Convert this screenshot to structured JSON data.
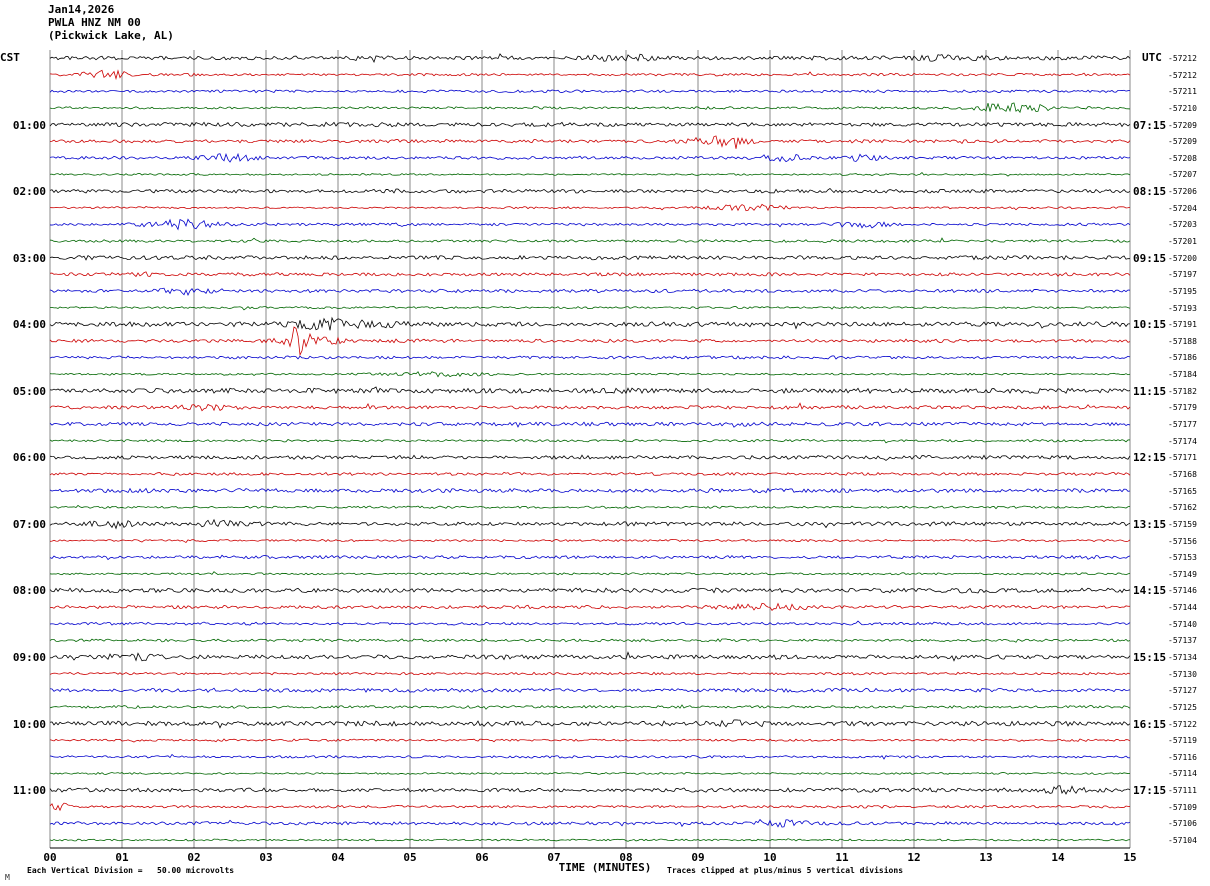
{
  "header": {
    "date": "Jan14,2026",
    "station": "PWLA HNZ NM 00",
    "location": "(Pickwick Lake, AL)"
  },
  "axes": {
    "left_label": "CST",
    "right_label": "UTC",
    "x_title": "TIME (MINUTES)",
    "x_ticks": [
      "00",
      "01",
      "02",
      "03",
      "04",
      "05",
      "06",
      "07",
      "08",
      "09",
      "10",
      "11",
      "12",
      "13",
      "14",
      "15"
    ],
    "footer_left": "Each Vertical Division =   50.00 microvolts",
    "footer_right": "Traces clipped at plus/minus 5 vertical divisions",
    "watermark": "M"
  },
  "chart_data": {
    "type": "line",
    "kind": "helicorder-seismogram",
    "title": "PWLA HNZ NM 00 (Pickwick Lake, AL) Jan14,2026",
    "date": "Jan14,2026",
    "station": "PWLA HNZ NM 00",
    "station_name": "Pickwick Lake, AL",
    "trace_count": 48,
    "minutes_per_line": 15,
    "x_range": [
      0,
      15
    ],
    "start_time_cst": "00:00",
    "colors_cycle": [
      "#000000",
      "#cc0000",
      "#0000cc",
      "#006600"
    ],
    "left_hour_labels": [
      {
        "row": 4,
        "label": "01:00"
      },
      {
        "row": 8,
        "label": "02:00"
      },
      {
        "row": 12,
        "label": "03:00"
      },
      {
        "row": 16,
        "label": "04:00"
      },
      {
        "row": 20,
        "label": "05:00"
      },
      {
        "row": 24,
        "label": "06:00"
      },
      {
        "row": 28,
        "label": "07:00"
      },
      {
        "row": 32,
        "label": "08:00"
      },
      {
        "row": 36,
        "label": "09:00"
      },
      {
        "row": 40,
        "label": "10:00"
      },
      {
        "row": 44,
        "label": "11:00"
      }
    ],
    "right_hour_labels": [
      {
        "row": 4,
        "label": "07:15"
      },
      {
        "row": 8,
        "label": "08:15"
      },
      {
        "row": 12,
        "label": "09:15"
      },
      {
        "row": 16,
        "label": "10:15"
      },
      {
        "row": 20,
        "label": "11:15"
      },
      {
        "row": 24,
        "label": "12:15"
      },
      {
        "row": 28,
        "label": "13:15"
      },
      {
        "row": 32,
        "label": "14:15"
      },
      {
        "row": 36,
        "label": "15:15"
      },
      {
        "row": 40,
        "label": "16:15"
      },
      {
        "row": 44,
        "label": "17:15"
      }
    ],
    "trace_offsets": [
      -57212,
      -57212,
      -57211,
      -57210,
      -57209,
      -57209,
      -57208,
      -57207,
      -57206,
      -57204,
      -57203,
      -57201,
      -57200,
      -57197,
      -57195,
      -57193,
      -57191,
      -57188,
      -57186,
      -57184,
      -57182,
      -57179,
      -57177,
      -57174,
      -57171,
      -57168,
      -57165,
      -57162,
      -57159,
      -57156,
      -57153,
      -57149,
      -57146,
      -57144,
      -57140,
      -57137,
      -57134,
      -57130,
      -57127,
      -57125,
      -57122,
      -57119,
      -57116,
      -57114,
      -57111,
      -57109,
      -57106,
      -57104
    ],
    "events": [
      {
        "row": 0,
        "minute": 8.0,
        "amp": 2.5,
        "width": 0.3
      },
      {
        "row": 0,
        "minute": 12.4,
        "amp": 2.0,
        "width": 0.3
      },
      {
        "row": 1,
        "minute": 0.75,
        "amp": 3.5,
        "width": 0.25
      },
      {
        "row": 3,
        "minute": 13.4,
        "amp": 4.5,
        "width": 0.35
      },
      {
        "row": 5,
        "minute": 9.3,
        "amp": 4.0,
        "width": 0.3
      },
      {
        "row": 6,
        "minute": 2.5,
        "amp": 3.0,
        "width": 0.25
      },
      {
        "row": 6,
        "minute": 10.15,
        "amp": 3.5,
        "width": 0.2
      },
      {
        "row": 6,
        "minute": 11.3,
        "amp": 3.0,
        "width": 0.15
      },
      {
        "row": 9,
        "minute": 9.7,
        "amp": 3.5,
        "width": 0.3
      },
      {
        "row": 10,
        "minute": 1.85,
        "amp": 4.0,
        "width": 0.35
      },
      {
        "row": 10,
        "minute": 11.25,
        "amp": 3.0,
        "width": 0.25
      },
      {
        "row": 13,
        "minute": 1.15,
        "amp": 2.5,
        "width": 0.2
      },
      {
        "row": 14,
        "minute": 1.9,
        "amp": 3.0,
        "width": 0.25
      },
      {
        "row": 16,
        "minute": 4.0,
        "amp": 4.5,
        "width": 0.45
      },
      {
        "row": 17,
        "minute": 3.42,
        "amp": 12.0,
        "width": 0.1
      },
      {
        "row": 17,
        "minute": 3.6,
        "amp": 4.0,
        "width": 0.3
      },
      {
        "row": 19,
        "minute": 5.4,
        "amp": 2.0,
        "width": 0.5
      },
      {
        "row": 21,
        "minute": 2.2,
        "amp": 2.0,
        "width": 0.3
      },
      {
        "row": 28,
        "minute": 0.85,
        "amp": 3.0,
        "width": 0.2
      },
      {
        "row": 28,
        "minute": 2.3,
        "amp": 3.0,
        "width": 0.2
      },
      {
        "row": 33,
        "minute": 9.9,
        "amp": 2.5,
        "width": 0.4
      },
      {
        "row": 36,
        "minute": 1.2,
        "amp": 2.0,
        "width": 0.3
      },
      {
        "row": 40,
        "minute": 9.6,
        "amp": 2.0,
        "width": 0.25
      },
      {
        "row": 44,
        "minute": 14.1,
        "amp": 3.0,
        "width": 0.2
      },
      {
        "row": 45,
        "minute": 0.15,
        "amp": 4.0,
        "width": 0.12
      },
      {
        "row": 46,
        "minute": 10.2,
        "amp": 2.5,
        "width": 0.25
      }
    ]
  }
}
